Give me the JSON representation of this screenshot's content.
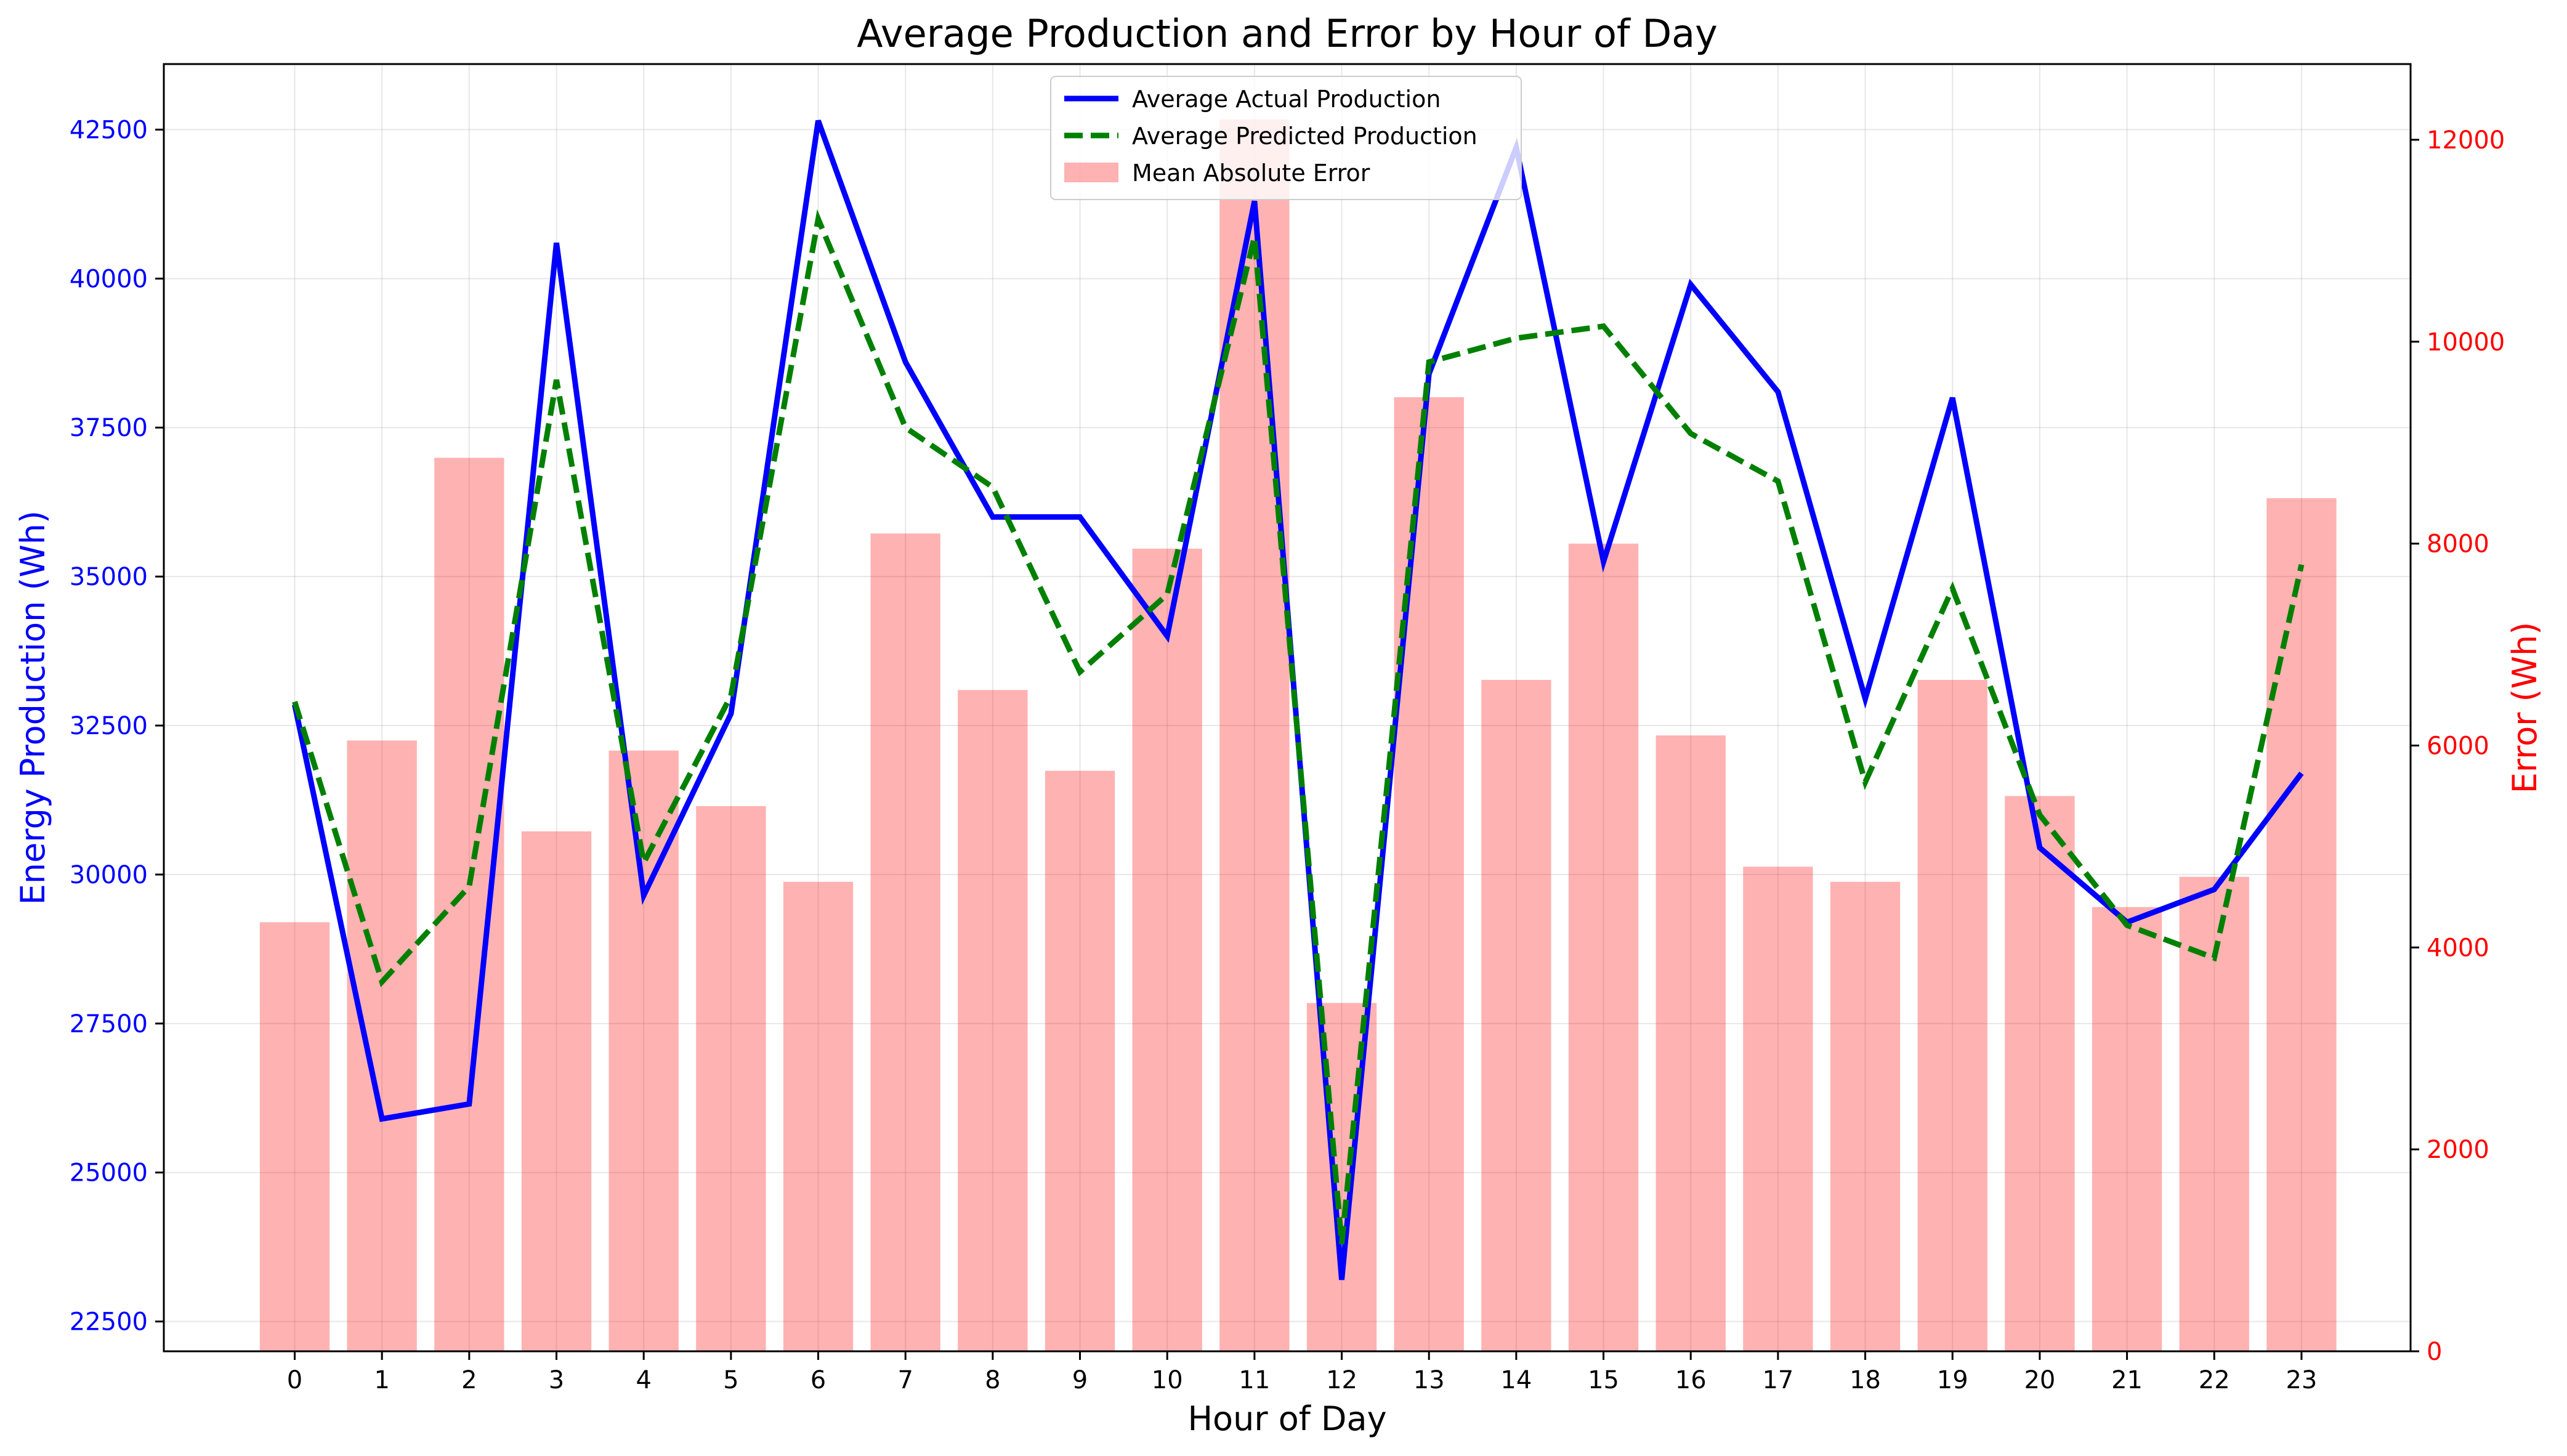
{
  "chart_data": {
    "type": "bar+line",
    "title": "Average Production and Error by Hour of Day",
    "xlabel": "Hour of Day",
    "ylabel_left": "Energy Production (Wh)",
    "ylabel_right": "Error (Wh)",
    "categories": [
      0,
      1,
      2,
      3,
      4,
      5,
      6,
      7,
      8,
      9,
      10,
      11,
      12,
      13,
      14,
      15,
      16,
      17,
      18,
      19,
      20,
      21,
      22,
      23
    ],
    "ylim_left": [
      22000,
      43600
    ],
    "ylim_right": [
      0,
      12750
    ],
    "yticks_left": [
      22500,
      25000,
      27500,
      30000,
      32500,
      35000,
      37500,
      40000,
      42500
    ],
    "yticks_right": [
      0,
      2000,
      4000,
      6000,
      8000,
      10000,
      12000
    ],
    "grid": true,
    "legend_position": "top-center",
    "series": [
      {
        "name": "Average Actual Production",
        "kind": "line",
        "axis": "left",
        "color": "#0000ff",
        "style": "solid",
        "values": [
          32850,
          25900,
          26150,
          40600,
          29650,
          32700,
          42650,
          38600,
          36000,
          36000,
          34000,
          41300,
          23200,
          38400,
          42200,
          35250,
          39900,
          38100,
          32950,
          38000,
          30450,
          29200,
          29750,
          31700
        ]
      },
      {
        "name": "Average Predicted Production",
        "kind": "line",
        "axis": "left",
        "color": "#008000",
        "style": "dashed",
        "values": [
          32900,
          28200,
          29800,
          38300,
          30200,
          33000,
          41000,
          37500,
          36500,
          33400,
          34700,
          40700,
          23800,
          38600,
          39000,
          39200,
          37400,
          36600,
          31550,
          34800,
          31000,
          29150,
          28600,
          35200
        ]
      },
      {
        "name": "Mean Absolute Error",
        "kind": "bar",
        "axis": "right",
        "color": "#ff0000",
        "opacity": 0.3,
        "values": [
          4250,
          6050,
          8850,
          5150,
          5950,
          5400,
          4650,
          8100,
          6550,
          5750,
          7950,
          12200,
          3450,
          9450,
          6650,
          8000,
          6100,
          4800,
          4650,
          6650,
          5500,
          4400,
          4700,
          8450
        ]
      }
    ]
  },
  "colors": {
    "left_axis": "#0000ff",
    "right_axis": "#ff0000"
  }
}
